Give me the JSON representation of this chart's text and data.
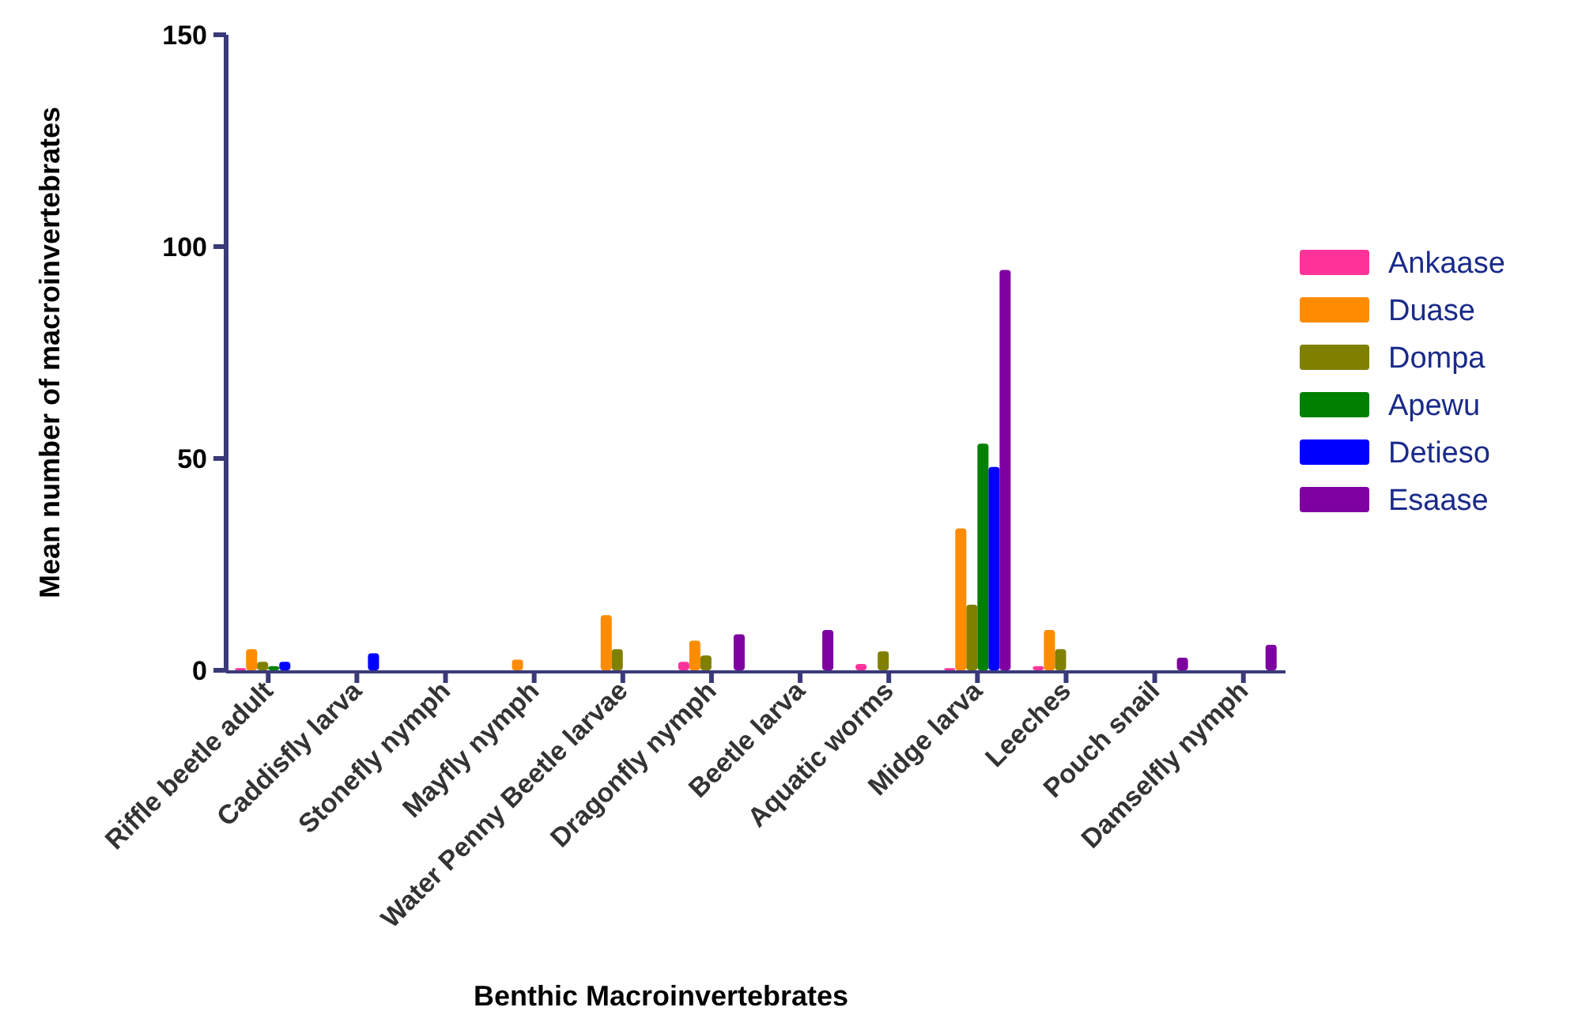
{
  "chart_data": {
    "type": "bar",
    "xlabel": "Benthic Macroinvertebrates",
    "ylabel": "Mean number of macroinvertebrates",
    "categories": [
      "Riffle beetle adult",
      "Caddisfly larva",
      "Stonefly nymph",
      "Mayfly nymph",
      "Water Penny Beetle larvae",
      "Dragonfly nymph",
      "Beetle larva",
      "Aquatic worms",
      "Midge larva",
      "Leeches",
      "Pouch snail",
      "Damselfly nymph"
    ],
    "series": [
      {
        "name": "Ankaase",
        "color": "#ff3399",
        "values": [
          0.5,
          0,
          0,
          0,
          0,
          2,
          0,
          1.5,
          0.5,
          1,
          0,
          0
        ]
      },
      {
        "name": "Duase",
        "color": "#ff8c00",
        "values": [
          5,
          0,
          0,
          2.5,
          13,
          7,
          0,
          0,
          33.5,
          9.5,
          0,
          0
        ]
      },
      {
        "name": "Dompa",
        "color": "#808000",
        "values": [
          2,
          0,
          0,
          0,
          5,
          3.5,
          0,
          4.5,
          15.5,
          5,
          0,
          0
        ]
      },
      {
        "name": "Apewu",
        "color": "#008000",
        "values": [
          1,
          0,
          0,
          0,
          0,
          0,
          0,
          0,
          53.5,
          0,
          0,
          0
        ]
      },
      {
        "name": "Detieso",
        "color": "#0000ff",
        "values": [
          2,
          4,
          0,
          0,
          0,
          0,
          0,
          0,
          48,
          0,
          0,
          0
        ]
      },
      {
        "name": "Esaase",
        "color": "#7f00a0",
        "values": [
          0,
          0,
          0,
          0,
          0,
          8.5,
          9.5,
          0,
          94.5,
          0,
          3,
          6
        ]
      }
    ],
    "ylim": [
      0,
      150
    ],
    "yticks": [
      0,
      50,
      100,
      150
    ],
    "grid": false,
    "legend": "right"
  }
}
